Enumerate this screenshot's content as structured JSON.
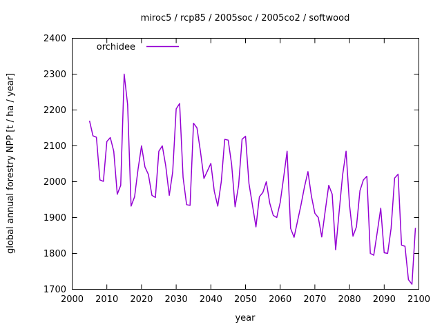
{
  "window": {
    "background": "#ffffff"
  },
  "chart_data": {
    "type": "line",
    "title": "miroc5 / rcp85 / 2005soc / 2005co2 / softwood",
    "xlabel": "year",
    "ylabel": "global annual forestry NPP [t / ha / year]",
    "xlim": [
      2000,
      2100
    ],
    "ylim": [
      1700,
      2400
    ],
    "xtick_step": 10,
    "ytick_step": 100,
    "xticks": [
      2000,
      2010,
      2020,
      2030,
      2040,
      2050,
      2060,
      2070,
      2080,
      2090,
      2100
    ],
    "yticks": [
      1700,
      1800,
      1900,
      2000,
      2100,
      2200,
      2300,
      2400
    ],
    "grid": false,
    "border": true,
    "legend_position": "top-left-inside",
    "axis_color": "#000000",
    "series": [
      {
        "name": "orchidee",
        "color": "#9400d3",
        "x": [
          2005,
          2006,
          2007,
          2008,
          2009,
          2010,
          2011,
          2012,
          2013,
          2014,
          2015,
          2016,
          2017,
          2018,
          2019,
          2020,
          2021,
          2022,
          2023,
          2024,
          2025,
          2026,
          2027,
          2028,
          2029,
          2030,
          2031,
          2032,
          2033,
          2034,
          2035,
          2036,
          2037,
          2038,
          2039,
          2040,
          2041,
          2042,
          2043,
          2044,
          2045,
          2046,
          2047,
          2048,
          2049,
          2050,
          2051,
          2052,
          2053,
          2054,
          2055,
          2056,
          2057,
          2058,
          2059,
          2060,
          2061,
          2062,
          2063,
          2064,
          2065,
          2066,
          2067,
          2068,
          2069,
          2070,
          2071,
          2072,
          2073,
          2074,
          2075,
          2076,
          2077,
          2078,
          2079,
          2080,
          2081,
          2082,
          2083,
          2084,
          2085,
          2086,
          2087,
          2088,
          2089,
          2090,
          2091,
          2092,
          2093,
          2094,
          2095,
          2096,
          2097,
          2098,
          2099
        ],
        "values": [
          2170,
          2128,
          2124,
          2005,
          2001,
          2112,
          2123,
          2085,
          1965,
          1990,
          2300,
          2215,
          1932,
          1958,
          2035,
          2100,
          2041,
          2020,
          1962,
          1956,
          2085,
          2100,
          2044,
          1962,
          2028,
          2203,
          2218,
          2012,
          1936,
          1934,
          2163,
          2150,
          2085,
          2009,
          2030,
          2051,
          1973,
          1932,
          2000,
          2118,
          2116,
          2048,
          1930,
          1990,
          2118,
          2127,
          1995,
          1935,
          1874,
          1958,
          1970,
          2000,
          1940,
          1906,
          1900,
          1942,
          2012,
          2085,
          1870,
          1845,
          1890,
          1935,
          1985,
          2028,
          1960,
          1912,
          1900,
          1846,
          1920,
          1990,
          1965,
          1810,
          1915,
          2019,
          2085,
          1935,
          1848,
          1874,
          1975,
          2005,
          2015,
          1800,
          1795,
          1860,
          1926,
          1802,
          1800,
          1870,
          2010,
          2021,
          1823,
          1820,
          1727,
          1714,
          1871
        ]
      }
    ]
  }
}
